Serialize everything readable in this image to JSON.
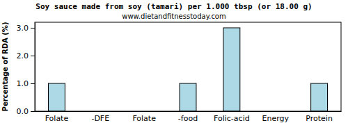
{
  "chart_data": {
    "type": "bar",
    "title": "Soy sauce made from soy (tamari) per 1.000 tbsp (or 18.00 g)",
    "subtitle": "www.dietandfitnesstoday.com",
    "y_label": "Percentage of RDA (%)",
    "categories": [
      "Folate",
      "-DFE",
      "Folate",
      "-food",
      "Folic-acid",
      "Energy",
      "Protein"
    ],
    "values": [
      1,
      0,
      0,
      1,
      3,
      0,
      1
    ],
    "color": "#add8e6",
    "ylim": [
      0,
      3.2
    ],
    "yticks": [
      {
        "value": 0,
        "label": "0.0"
      },
      {
        "value": 1,
        "label": "1.0"
      },
      {
        "value": 2,
        "label": "2.0"
      },
      {
        "value": 3,
        "label": "3.0"
      }
    ],
    "grid": false
  }
}
